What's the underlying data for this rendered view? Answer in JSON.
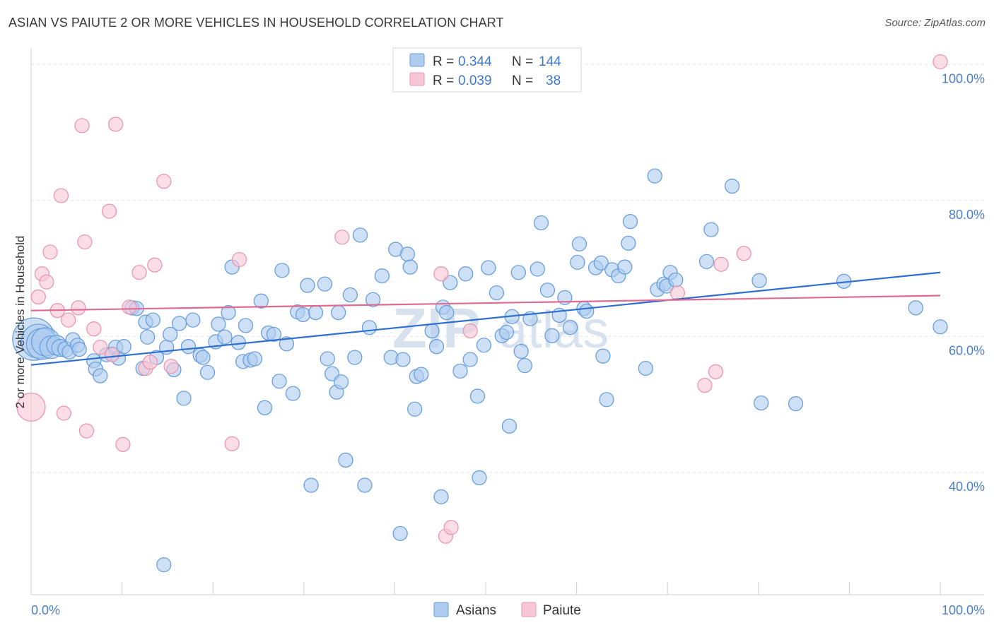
{
  "title": "ASIAN VS PAIUTE 2 OR MORE VEHICLES IN HOUSEHOLD CORRELATION CHART",
  "source": "Source: ZipAtlas.com",
  "watermark": {
    "zip": "ZIP",
    "atlas": "atlas"
  },
  "colors": {
    "asian_fill": "#aecbf0",
    "asian_stroke": "#6a9fdc",
    "asian_line": "#2f6fd0",
    "paiute_fill": "#f8c7d5",
    "paiute_stroke": "#e898b0",
    "paiute_line": "#e06a92",
    "grid": "#e4e4e4",
    "tick_text": "#4a7fc9"
  },
  "legend": {
    "asian": {
      "r_label": "R = ",
      "r_value": "0.344",
      "n_label": "N = ",
      "n_value": "144"
    },
    "paiute": {
      "r_label": "R = ",
      "r_value": "0.039",
      "n_label": "N = ",
      "n_value": "38"
    }
  },
  "bottom_legend": [
    "Asians",
    "Paiute"
  ],
  "chart_data": {
    "type": "scatter",
    "title": "ASIAN VS PAIUTE 2 OR MORE VEHICLES IN HOUSEHOLD CORRELATION CHART",
    "xlabel": "",
    "ylabel": "2 or more Vehicles in Household",
    "xlim": [
      0,
      100
    ],
    "ylim": [
      22,
      102
    ],
    "x_tick_labels": [
      "0.0%",
      "100.0%"
    ],
    "y_ticks": [
      40,
      60,
      80,
      100
    ],
    "y_tick_labels": [
      "40.0%",
      "60.0%",
      "80.0%",
      "100.0%"
    ],
    "grid": true,
    "legend_position": "top-center",
    "series": [
      {
        "name": "Asians",
        "r": 0.344,
        "n": 144,
        "trend": [
          [
            0,
            55.8
          ],
          [
            100,
            69.4
          ]
        ],
        "points": [
          [
            0.3,
            59.6,
            3
          ],
          [
            0.8,
            59.3,
            2.4
          ],
          [
            1.2,
            58.9,
            2.2
          ],
          [
            1.6,
            59.2,
            2
          ],
          [
            2.2,
            58.4,
            1.6
          ],
          [
            2.8,
            58.7,
            1.4
          ],
          [
            3.2,
            58.3,
            1.2
          ],
          [
            3.8,
            58.1,
            1.1
          ],
          [
            4.2,
            57.7,
            1
          ],
          [
            4.6,
            59.5,
            1
          ],
          [
            5.1,
            58.7,
            1
          ],
          [
            5.3,
            58.1,
            1
          ],
          [
            6.9,
            56.4,
            1
          ],
          [
            7.1,
            55.2,
            1
          ],
          [
            7.6,
            54.2,
            1
          ],
          [
            8.3,
            57.3,
            1
          ],
          [
            8.9,
            57.4,
            1
          ],
          [
            9.3,
            58.4,
            1
          ],
          [
            9.6,
            56.8,
            1
          ],
          [
            10.2,
            58.5,
            1
          ],
          [
            11.1,
            64.2,
            1
          ],
          [
            11.6,
            64.1,
            1
          ],
          [
            12.3,
            55.3,
            1
          ],
          [
            12.6,
            62.1,
            1
          ],
          [
            12.8,
            59.9,
            1
          ],
          [
            13.4,
            62.4,
            1
          ],
          [
            13.8,
            56.9,
            1
          ],
          [
            14.6,
            26.4,
            1
          ],
          [
            14.9,
            58.4,
            1
          ],
          [
            15.3,
            60.3,
            1
          ],
          [
            15.7,
            55.1,
            1
          ],
          [
            16.3,
            61.9,
            1
          ],
          [
            16.8,
            50.9,
            1
          ],
          [
            17.3,
            58.5,
            1
          ],
          [
            17.8,
            62.4,
            1
          ],
          [
            18.6,
            57.2,
            1
          ],
          [
            18.9,
            56.9,
            1
          ],
          [
            19.4,
            54.7,
            1
          ],
          [
            20.3,
            59.2,
            1
          ],
          [
            20.6,
            61.8,
            1
          ],
          [
            21.3,
            59.9,
            1
          ],
          [
            21.7,
            63.5,
            1
          ],
          [
            22.1,
            70.2,
            1
          ],
          [
            22.8,
            59.1,
            1
          ],
          [
            23.3,
            56.3,
            1
          ],
          [
            23.6,
            61.6,
            1
          ],
          [
            24.1,
            56.5,
            1
          ],
          [
            24.6,
            56.7,
            1
          ],
          [
            25.3,
            65.2,
            1
          ],
          [
            25.7,
            49.5,
            1
          ],
          [
            26.1,
            60.5,
            1
          ],
          [
            26.7,
            60.3,
            1
          ],
          [
            27.3,
            53.4,
            1
          ],
          [
            27.6,
            69.7,
            1
          ],
          [
            28.1,
            58.9,
            1
          ],
          [
            28.8,
            51.6,
            1
          ],
          [
            29.3,
            63.6,
            1
          ],
          [
            29.9,
            63.2,
            1
          ],
          [
            30.4,
            67.5,
            1
          ],
          [
            30.8,
            38.1,
            1
          ],
          [
            31.3,
            63.5,
            1
          ],
          [
            32.3,
            67.7,
            1
          ],
          [
            32.6,
            56.7,
            1
          ],
          [
            33.1,
            54.5,
            1
          ],
          [
            33.6,
            51.8,
            1
          ],
          [
            33.8,
            63.5,
            1
          ],
          [
            34.1,
            53.3,
            1
          ],
          [
            34.6,
            41.8,
            1
          ],
          [
            35.1,
            66.1,
            1
          ],
          [
            35.6,
            56.9,
            1
          ],
          [
            36.2,
            74.9,
            1
          ],
          [
            36.7,
            38.1,
            1
          ],
          [
            37.2,
            61.3,
            1
          ],
          [
            37.6,
            65.4,
            1
          ],
          [
            38.6,
            68.9,
            1
          ],
          [
            39.6,
            56.9,
            1
          ],
          [
            40.1,
            72.8,
            1
          ],
          [
            40.6,
            31.0,
            1
          ],
          [
            40.9,
            56.6,
            1
          ],
          [
            41.4,
            72.1,
            1
          ],
          [
            41.7,
            70.2,
            1
          ],
          [
            42.2,
            49.3,
            1
          ],
          [
            42.4,
            54.1,
            1
          ],
          [
            42.9,
            54.4,
            1
          ],
          [
            44.1,
            60.8,
            1
          ],
          [
            44.6,
            58.5,
            1
          ],
          [
            45.1,
            36.4,
            1
          ],
          [
            45.3,
            64.3,
            1
          ],
          [
            45.7,
            63.5,
            1
          ],
          [
            46.1,
            67.9,
            1
          ],
          [
            47.2,
            54.9,
            1
          ],
          [
            47.8,
            69.2,
            1
          ],
          [
            48.3,
            56.6,
            1
          ],
          [
            49.1,
            51.2,
            1
          ],
          [
            49.3,
            39.2,
            1
          ],
          [
            49.8,
            58.7,
            1
          ],
          [
            50.3,
            70.1,
            1
          ],
          [
            51.2,
            66.4,
            1
          ],
          [
            51.8,
            60.1,
            1
          ],
          [
            52.3,
            60.6,
            1
          ],
          [
            52.6,
            46.8,
            1
          ],
          [
            52.9,
            62.9,
            1
          ],
          [
            53.6,
            69.4,
            1
          ],
          [
            53.9,
            57.8,
            1
          ],
          [
            54.3,
            55.7,
            1
          ],
          [
            54.9,
            62.6,
            1
          ],
          [
            55.7,
            69.9,
            1
          ],
          [
            56.1,
            76.7,
            1
          ],
          [
            56.8,
            66.8,
            1
          ],
          [
            57.3,
            60.1,
            1
          ],
          [
            58.1,
            63.1,
            1
          ],
          [
            58.7,
            65.7,
            1
          ],
          [
            59.3,
            61.3,
            1
          ],
          [
            60.1,
            70.9,
            1
          ],
          [
            60.3,
            73.6,
            1
          ],
          [
            60.8,
            64.1,
            1
          ],
          [
            61.1,
            63.7,
            1
          ],
          [
            62.1,
            70.1,
            1
          ],
          [
            62.7,
            70.8,
            1
          ],
          [
            62.9,
            57.1,
            1
          ],
          [
            63.3,
            50.7,
            1
          ],
          [
            63.9,
            69.8,
            1
          ],
          [
            64.6,
            68.9,
            1
          ],
          [
            65.3,
            70.2,
            1
          ],
          [
            65.7,
            73.7,
            1
          ],
          [
            65.9,
            76.9,
            1
          ],
          [
            67.6,
            55.3,
            1
          ],
          [
            68.6,
            83.6,
            1
          ],
          [
            68.9,
            66.9,
            1
          ],
          [
            69.6,
            67.7,
            1
          ],
          [
            69.9,
            67.4,
            1
          ],
          [
            70.3,
            69.4,
            1
          ],
          [
            70.9,
            68.3,
            1
          ],
          [
            74.3,
            71.0,
            1
          ],
          [
            74.8,
            75.7,
            1
          ],
          [
            77.1,
            82.1,
            1
          ],
          [
            80.1,
            68.2,
            1
          ],
          [
            80.3,
            50.2,
            1
          ],
          [
            84.1,
            50.1,
            1
          ],
          [
            89.4,
            68.1,
            1
          ],
          [
            97.3,
            64.2,
            1
          ],
          [
            100,
            61.4,
            1
          ]
        ]
      },
      {
        "name": "Paiute",
        "r": 0.039,
        "n": 38,
        "trend": [
          [
            0,
            63.8
          ],
          [
            100,
            66.0
          ]
        ],
        "points": [
          [
            0,
            49.6,
            2
          ],
          [
            0.8,
            65.8,
            1
          ],
          [
            1.2,
            69.2,
            1
          ],
          [
            1.7,
            68.0,
            1
          ],
          [
            2.1,
            72.4,
            1
          ],
          [
            2.9,
            63.8,
            1
          ],
          [
            3.3,
            80.7,
            1
          ],
          [
            3.6,
            48.7,
            1
          ],
          [
            4.1,
            62.4,
            1
          ],
          [
            5.2,
            64.2,
            1
          ],
          [
            5.6,
            91.0,
            1
          ],
          [
            5.9,
            73.9,
            1
          ],
          [
            6.1,
            46.1,
            1
          ],
          [
            6.9,
            61.1,
            1
          ],
          [
            7.6,
            58.4,
            1
          ],
          [
            8.6,
            78.4,
            1
          ],
          [
            8.9,
            57.3,
            1
          ],
          [
            9.3,
            91.2,
            1
          ],
          [
            10.1,
            44.1,
            1
          ],
          [
            10.8,
            64.3,
            1
          ],
          [
            11.9,
            69.4,
            1
          ],
          [
            12.6,
            55.3,
            1
          ],
          [
            13.1,
            56.2,
            1
          ],
          [
            13.6,
            70.5,
            1
          ],
          [
            14.6,
            82.8,
            1
          ],
          [
            15.4,
            55.6,
            1
          ],
          [
            22.1,
            44.2,
            1
          ],
          [
            22.9,
            71.3,
            1
          ],
          [
            34.2,
            74.6,
            1
          ],
          [
            45.1,
            69.2,
            1
          ],
          [
            45.6,
            30.6,
            1
          ],
          [
            46.2,
            31.9,
            1
          ],
          [
            48.3,
            60.8,
            1
          ],
          [
            71.1,
            66.4,
            1
          ],
          [
            74.1,
            52.8,
            1
          ],
          [
            75.3,
            54.8,
            1
          ],
          [
            75.9,
            70.6,
            1
          ],
          [
            78.4,
            72.2,
            1
          ],
          [
            100,
            100.4,
            1
          ]
        ]
      }
    ]
  }
}
